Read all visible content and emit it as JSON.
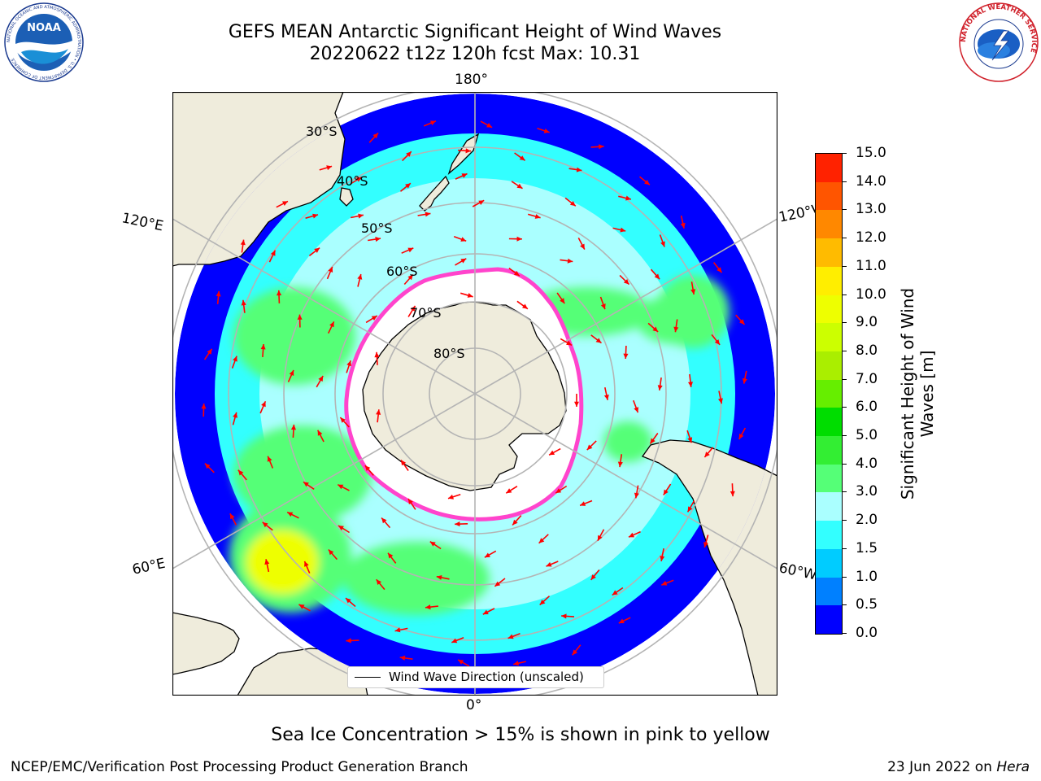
{
  "title": {
    "line1": "GEFS MEAN Antarctic Significant Height of Wind Waves",
    "line2": "20220622 t12z 120h fcst   Max: 10.31"
  },
  "logos": {
    "left": "NOAA",
    "left_ring_text": "NATIONAL OCEANIC AND ATMOSPHERIC ADMINISTRATION • U.S. DEPARTMENT OF COMMERCE",
    "right_ring_text": "NATIONAL WEATHER SERVICE"
  },
  "map": {
    "projection": "south-polar-stereographic",
    "longitude_labels": {
      "top": "180°",
      "bottom": "0°",
      "upper_left": "120°E",
      "lower_left": "60°E",
      "upper_right": "120°W",
      "lower_right": "60°W"
    },
    "latitude_labels": [
      "30°S",
      "40°S",
      "50°S",
      "60°S",
      "70°S",
      "80°S"
    ],
    "colors": {
      "land": "#efecdc",
      "ice_fill": "#ffffff",
      "ice_edge": "#ff44cc",
      "arrows": "#ff0000",
      "grid": "#b4b4b4"
    }
  },
  "colorbar": {
    "ticks": [
      "0.0",
      "0.5",
      "1.0",
      "1.5",
      "2.0",
      "3.0",
      "4.0",
      "5.0",
      "6.0",
      "7.0",
      "8.0",
      "9.0",
      "10.0",
      "11.0",
      "12.0",
      "13.0",
      "14.0",
      "15.0"
    ],
    "colors": [
      "#0000ff",
      "#0080ff",
      "#00ccff",
      "#33ffff",
      "#aaffff",
      "#55ff77",
      "#33ee33",
      "#00dd00",
      "#66ee00",
      "#aaee00",
      "#ccff00",
      "#eeff00",
      "#ffee00",
      "#ffbb00",
      "#ff8800",
      "#ff5500",
      "#ff2200"
    ],
    "label": "Significant Height of Wind Waves [m]"
  },
  "legend": {
    "label": "Wind Wave Direction (unscaled)"
  },
  "note": "Sea Ice Concentration > 15% is shown in pink to yellow",
  "footer": {
    "left": "NCEP/EMC/Verification Post Processing Product Generation Branch",
    "date": "23 Jun 2022 on",
    "host": "Hera"
  }
}
